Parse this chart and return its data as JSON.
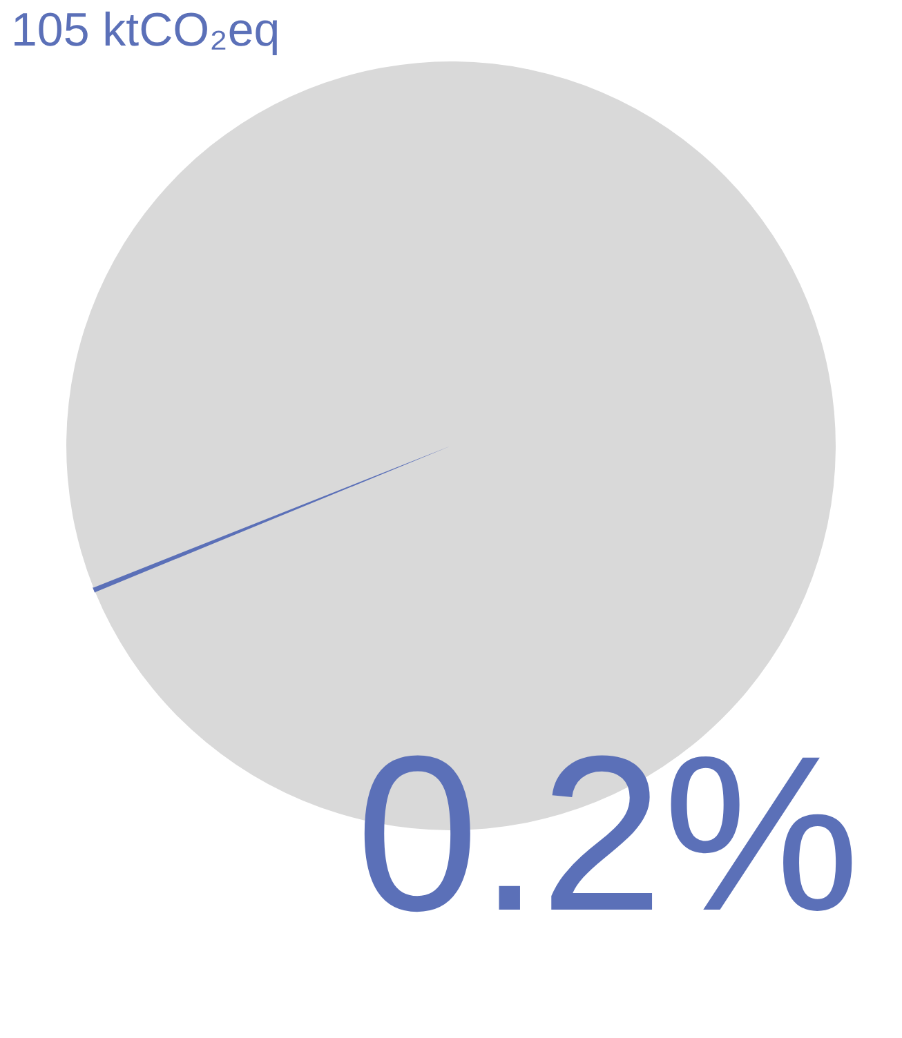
{
  "chart_data": {
    "type": "pie",
    "title": "105 ktCO₂eq",
    "categories": [
      null,
      null
    ],
    "values": [
      0.2,
      99.8
    ],
    "colors": [
      "#5b70b8",
      "#d9d9d9"
    ],
    "annotations": [
      "0.2%"
    ]
  }
}
